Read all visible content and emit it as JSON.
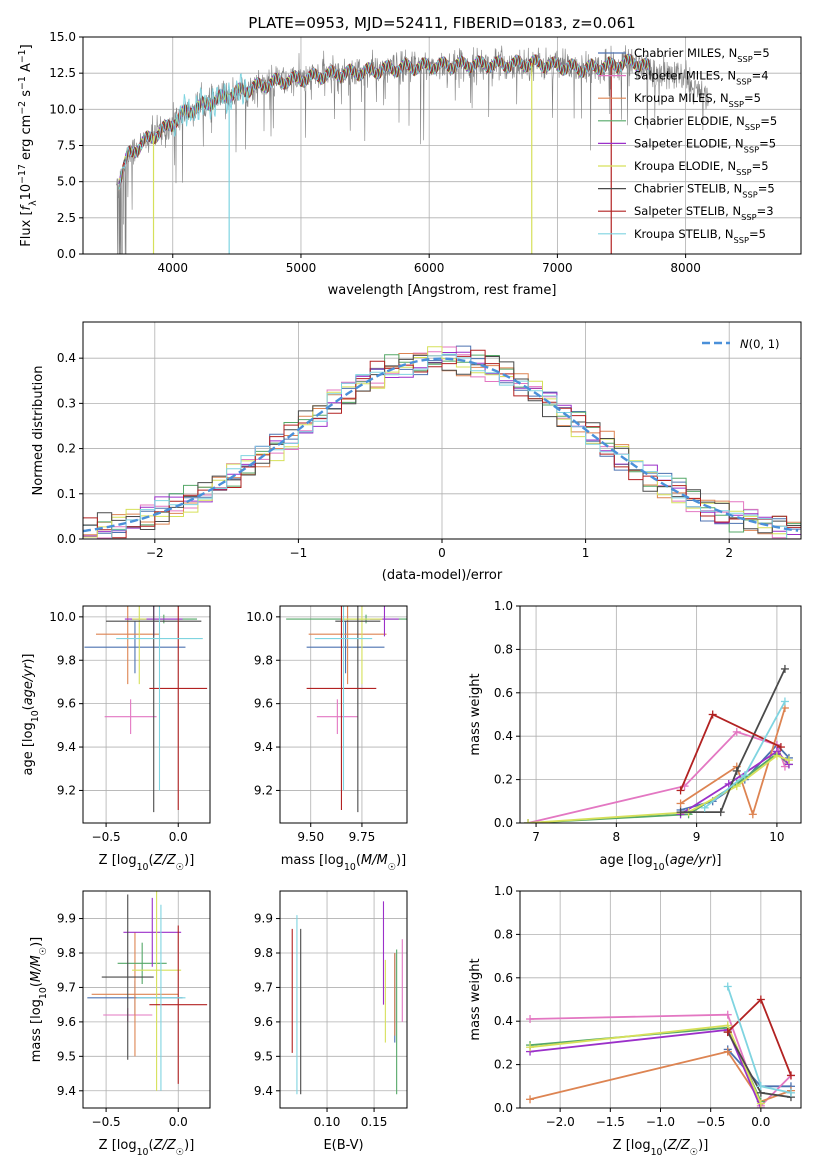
{
  "colors": {
    "Chabrier MILES": "#4c72b0",
    "Salpeter MILES": "#e377c2",
    "Kroupa MILES": "#dd8452",
    "Chabrier ELODIE": "#55a868",
    "Salpeter ELODIE": "#9b30c9",
    "Kroupa ELODIE": "#d6e05a",
    "Chabrier STELIB": "#4a4a4a",
    "Salpeter STELIB": "#b22222",
    "Kroupa STELIB": "#7fd4e0",
    "data": "#808080",
    "gauss": "#4a90d9",
    "grid": "#b0b0b0"
  },
  "chart_data": [
    {
      "id": "spectrum",
      "type": "line",
      "title": "PLATE=0953, MJD=52411, FIBERID=0183, z=0.061",
      "xlabel": "wavelength [Angstrom, rest frame]",
      "ylabel": "Flux [f_λ 10^-17 erg cm^-2 s^-1 A^-1]",
      "xlim": [
        3300,
        8900
      ],
      "ylim": [
        0,
        15
      ],
      "xticks": [
        4000,
        5000,
        6000,
        7000,
        8000
      ],
      "yticks": [
        0.0,
        2.5,
        5.0,
        7.5,
        10.0,
        12.5,
        15.0
      ],
      "legend": "right",
      "legend_entries": [
        {
          "model": "Chabrier MILES",
          "label": "Chabrier MILES, N",
          "sub": "SSP",
          "suffix": "=5"
        },
        {
          "model": "Salpeter MILES",
          "label": "Salpeter MILES, N",
          "sub": "SSP",
          "suffix": "=4"
        },
        {
          "model": "Kroupa MILES",
          "label": "Kroupa MILES, N",
          "sub": "SSP",
          "suffix": "=5"
        },
        {
          "model": "Chabrier ELODIE",
          "label": "Chabrier ELODIE, N",
          "sub": "SSP",
          "suffix": "=5"
        },
        {
          "model": "Salpeter ELODIE",
          "label": "Salpeter ELODIE, N",
          "sub": "SSP",
          "suffix": "=5"
        },
        {
          "model": "Kroupa ELODIE",
          "label": "Kroupa ELODIE, N",
          "sub": "SSP",
          "suffix": "=5"
        },
        {
          "model": "Chabrier STELIB",
          "label": "Chabrier STELIB, N",
          "sub": "SSP",
          "suffix": "=5"
        },
        {
          "model": "Salpeter STELIB",
          "label": "Salpeter STELIB, N",
          "sub": "SSP",
          "suffix": "=3"
        },
        {
          "model": "Kroupa STELIB",
          "label": "Kroupa STELIB, N",
          "sub": "SSP",
          "suffix": "=5"
        }
      ],
      "continuum": [
        [
          3580,
          5.0
        ],
        [
          3650,
          6.8
        ],
        [
          3800,
          7.9
        ],
        [
          3950,
          8.7
        ],
        [
          4100,
          9.8
        ],
        [
          4300,
          10.5
        ],
        [
          4500,
          11.2
        ],
        [
          4800,
          11.9
        ],
        [
          5000,
          12.1
        ],
        [
          5200,
          12.4
        ],
        [
          5500,
          12.6
        ],
        [
          5800,
          12.9
        ],
        [
          6000,
          13.0
        ],
        [
          6300,
          13.1
        ],
        [
          6600,
          13.1
        ],
        [
          6800,
          13.2
        ],
        [
          7000,
          13.0
        ],
        [
          7200,
          12.8
        ],
        [
          7400,
          13.0
        ],
        [
          7600,
          13.3
        ],
        [
          7700,
          12.9
        ],
        [
          7800,
          12.3
        ],
        [
          7900,
          12.4
        ],
        [
          8000,
          12.1
        ],
        [
          8100,
          11.2
        ],
        [
          8180,
          10.5
        ]
      ],
      "model_end": 7720
    },
    {
      "id": "residual-hist",
      "type": "bar",
      "xlabel": "(data-model)/error",
      "ylabel": "Normed distribution",
      "xlim": [
        -2.5,
        2.5
      ],
      "ylim": [
        0,
        0.48
      ],
      "xticks": [
        -2,
        -1,
        0,
        1,
        2
      ],
      "yticks": [
        0.0,
        0.1,
        0.2,
        0.3,
        0.4
      ],
      "bin_width": 0.1,
      "gaussian_label": "N(0, 1)",
      "legend": "top-right"
    },
    {
      "id": "age-vs-Z",
      "type": "scatter",
      "xlabel": "Z [log10(Z/Z☉)]",
      "ylabel": "age [log10(age/yr)]",
      "xlim": [
        -0.66,
        0.22
      ],
      "ylim": [
        9.05,
        10.05
      ],
      "xticks": [
        -0.5,
        0.0
      ],
      "yticks": [
        9.2,
        9.4,
        9.6,
        9.8,
        10.0
      ],
      "points": [
        {
          "model": "Chabrier MILES",
          "x": -0.3,
          "y": 9.86,
          "xerr": 0.35,
          "yerr": 0.12
        },
        {
          "model": "Salpeter MILES",
          "x": -0.33,
          "y": 9.54,
          "xerr": 0.18,
          "yerr": 0.08
        },
        {
          "model": "Kroupa MILES",
          "x": -0.35,
          "y": 9.92,
          "xerr": 0.22,
          "yerr": 0.23
        },
        {
          "model": "Chabrier ELODIE",
          "x": -0.1,
          "y": 9.99,
          "xerr": 0.23,
          "yerr": 0.02
        },
        {
          "model": "Salpeter ELODIE",
          "x": -0.17,
          "y": 9.99,
          "xerr": 0.2,
          "yerr": 0.08
        },
        {
          "model": "Kroupa ELODIE",
          "x": -0.27,
          "y": 9.99,
          "xerr": 0.05,
          "yerr": 0.3
        },
        {
          "model": "Chabrier STELIB",
          "x": -0.17,
          "y": 9.98,
          "xerr": 0.33,
          "yerr": 0.88
        },
        {
          "model": "Salpeter STELIB",
          "x": 0.0,
          "y": 9.67,
          "xerr": 0.2,
          "yerr": 0.56
        },
        {
          "model": "Kroupa STELIB",
          "x": -0.13,
          "y": 9.9,
          "xerr": 0.3,
          "yerr": 0.7
        }
      ]
    },
    {
      "id": "age-vs-mass",
      "type": "scatter",
      "xlabel": "mass [log10(M/M☉)]",
      "ylabel": "",
      "xlim": [
        9.35,
        9.97
      ],
      "ylim": [
        9.05,
        10.05
      ],
      "xticks": [
        9.5,
        9.75
      ],
      "yticks": [
        9.2,
        9.4,
        9.6,
        9.8,
        10.0
      ],
      "points": [
        {
          "model": "Chabrier MILES",
          "x": 9.67,
          "y": 9.86,
          "xerr": 0.19,
          "yerr": 0.12
        },
        {
          "model": "Salpeter MILES",
          "x": 9.63,
          "y": 9.54,
          "xerr": 0.1,
          "yerr": 0.08
        },
        {
          "model": "Kroupa MILES",
          "x": 9.68,
          "y": 9.92,
          "xerr": 0.19,
          "yerr": 0.23
        },
        {
          "model": "Chabrier ELODIE",
          "x": 9.77,
          "y": 9.99,
          "xerr": 0.39,
          "yerr": 0.02
        },
        {
          "model": "Salpeter ELODIE",
          "x": 9.86,
          "y": 9.99,
          "xerr": 0.07,
          "yerr": 0.08
        },
        {
          "model": "Kroupa ELODIE",
          "x": 9.75,
          "y": 9.99,
          "xerr": 0.1,
          "yerr": 0.3
        },
        {
          "model": "Chabrier STELIB",
          "x": 9.73,
          "y": 9.98,
          "xerr": 0.11,
          "yerr": 0.88
        },
        {
          "model": "Salpeter STELIB",
          "x": 9.65,
          "y": 9.67,
          "xerr": 0.17,
          "yerr": 0.56
        },
        {
          "model": "Kroupa STELIB",
          "x": 9.66,
          "y": 9.9,
          "xerr": 0.14,
          "yerr": 0.7
        }
      ]
    },
    {
      "id": "mass-weight-vs-age",
      "type": "line",
      "xlabel": "age [log10(age/yr)]",
      "ylabel": "mass weight",
      "xlim": [
        6.8,
        10.3
      ],
      "ylim": [
        0,
        1.0
      ],
      "xticks": [
        7,
        8,
        9,
        10
      ],
      "yticks": [
        0.0,
        0.2,
        0.4,
        0.6,
        0.8,
        1.0
      ],
      "series": [
        {
          "model": "Chabrier MILES",
          "x": [
            8.8,
            9.2,
            9.6,
            10.0,
            10.15
          ],
          "y": [
            0.06,
            0.1,
            0.2,
            0.36,
            0.3
          ]
        },
        {
          "model": "Salpeter MILES",
          "x": [
            6.9,
            8.85,
            9.5,
            10.0,
            10.1
          ],
          "y": [
            0.0,
            0.17,
            0.42,
            0.36,
            0.26
          ]
        },
        {
          "model": "Kroupa MILES",
          "x": [
            8.8,
            9.5,
            9.7,
            10.1
          ],
          "y": [
            0.09,
            0.26,
            0.04,
            0.53
          ]
        },
        {
          "model": "Chabrier ELODIE",
          "x": [
            6.9,
            8.9,
            9.5,
            10.0,
            10.15
          ],
          "y": [
            0.0,
            0.04,
            0.18,
            0.32,
            0.27
          ]
        },
        {
          "model": "Salpeter ELODIE",
          "x": [
            8.8,
            9.4,
            10.0,
            10.15
          ],
          "y": [
            0.04,
            0.18,
            0.33,
            0.27
          ]
        },
        {
          "model": "Kroupa ELODIE",
          "x": [
            6.9,
            8.9,
            9.5,
            10.0,
            10.15
          ],
          "y": [
            0.0,
            0.05,
            0.17,
            0.31,
            0.29
          ]
        },
        {
          "model": "Chabrier STELIB",
          "x": [
            8.8,
            9.3,
            9.5,
            10.1
          ],
          "y": [
            0.05,
            0.05,
            0.24,
            0.71
          ]
        },
        {
          "model": "Salpeter STELIB",
          "x": [
            8.8,
            9.2,
            10.05
          ],
          "y": [
            0.15,
            0.5,
            0.35
          ]
        },
        {
          "model": "Kroupa STELIB",
          "x": [
            9.1,
            9.6,
            10.1
          ],
          "y": [
            0.07,
            0.22,
            0.56
          ]
        }
      ]
    },
    {
      "id": "mass-vs-Z",
      "type": "scatter",
      "xlabel": "Z [log10(Z/Z☉)]",
      "ylabel": "mass [log10(M/M☉)]",
      "xlim": [
        -0.66,
        0.22
      ],
      "ylim": [
        9.35,
        9.98
      ],
      "xticks": [
        -0.5,
        0.0
      ],
      "yticks": [
        9.4,
        9.5,
        9.6,
        9.7,
        9.8,
        9.9
      ],
      "points": [
        {
          "model": "Chabrier MILES",
          "x": -0.3,
          "y": 9.67,
          "xerr": 0.33,
          "yerr": 0.05
        },
        {
          "model": "Salpeter MILES",
          "x": -0.35,
          "y": 9.62,
          "xerr": 0.17,
          "yerr": 0.02
        },
        {
          "model": "Kroupa MILES",
          "x": -0.3,
          "y": 9.68,
          "xerr": 0.3,
          "yerr": 0.18
        },
        {
          "model": "Chabrier ELODIE",
          "x": -0.25,
          "y": 9.77,
          "xerr": 0.17,
          "yerr": 0.06
        },
        {
          "model": "Salpeter ELODIE",
          "x": -0.18,
          "y": 9.86,
          "xerr": 0.2,
          "yerr": 0.1
        },
        {
          "model": "Kroupa ELODIE",
          "x": -0.15,
          "y": 9.75,
          "xerr": 0.17,
          "yerr": 0.35
        },
        {
          "model": "Chabrier STELIB",
          "x": -0.35,
          "y": 9.73,
          "xerr": 0.18,
          "yerr": 0.24
        },
        {
          "model": "Salpeter STELIB",
          "x": 0.0,
          "y": 9.65,
          "xerr": 0.2,
          "yerr": 0.23
        },
        {
          "model": "Kroupa STELIB",
          "x": -0.12,
          "y": 9.67,
          "xerr": 0.17,
          "yerr": 0.27
        }
      ]
    },
    {
      "id": "mass-vs-ebv",
      "type": "scatter",
      "xlabel": "E(B-V)",
      "ylabel": "",
      "xlim": [
        0.05,
        0.185
      ],
      "ylim": [
        9.35,
        9.98
      ],
      "xticks": [
        0.1,
        0.15
      ],
      "yticks": [
        9.4,
        9.5,
        9.6,
        9.7,
        9.8,
        9.9
      ],
      "points": [
        {
          "model": "Chabrier MILES",
          "x": 0.172,
          "y": 9.67,
          "xerr": 0,
          "yerr": 0.13
        },
        {
          "model": "Salpeter MILES",
          "x": 0.18,
          "y": 9.72,
          "xerr": 0,
          "yerr": 0.12
        },
        {
          "model": "Kroupa MILES",
          "x": 0.172,
          "y": 9.68,
          "xerr": 0,
          "yerr": 0.12
        },
        {
          "model": "Chabrier ELODIE",
          "x": 0.174,
          "y": 9.6,
          "xerr": 0,
          "yerr": 0.21
        },
        {
          "model": "Salpeter ELODIE",
          "x": 0.16,
          "y": 9.8,
          "xerr": 0,
          "yerr": 0.15
        },
        {
          "model": "Kroupa ELODIE",
          "x": 0.162,
          "y": 9.66,
          "xerr": 0,
          "yerr": 0.12
        },
        {
          "model": "Chabrier STELIB",
          "x": 0.072,
          "y": 9.63,
          "xerr": 0,
          "yerr": 0.24
        },
        {
          "model": "Salpeter STELIB",
          "x": 0.063,
          "y": 9.69,
          "xerr": 0,
          "yerr": 0.18
        },
        {
          "model": "Kroupa STELIB",
          "x": 0.068,
          "y": 9.65,
          "xerr": 0,
          "yerr": 0.26
        }
      ]
    },
    {
      "id": "mass-weight-vs-Z",
      "type": "line",
      "xlabel": "Z [log10(Z/Z☉)]",
      "ylabel": "mass weight",
      "xlim": [
        -2.4,
        0.4
      ],
      "ylim": [
        0,
        1.0
      ],
      "xticks": [
        -2.0,
        -1.5,
        -1.0,
        -0.5,
        0.0
      ],
      "yticks": [
        0.0,
        0.2,
        0.4,
        0.6,
        0.8,
        1.0
      ],
      "series": [
        {
          "model": "Chabrier MILES",
          "x": [
            -0.33,
            0.0,
            0.3
          ],
          "y": [
            0.27,
            0.1,
            0.1
          ]
        },
        {
          "model": "Salpeter MILES",
          "x": [
            -2.3,
            -0.33,
            0.0,
            0.3
          ],
          "y": [
            0.41,
            0.43,
            0.01,
            0.15
          ]
        },
        {
          "model": "Kroupa MILES",
          "x": [
            -2.3,
            -0.33,
            0.0,
            0.3
          ],
          "y": [
            0.04,
            0.26,
            0.03,
            0.08
          ]
        },
        {
          "model": "Chabrier ELODIE",
          "x": [
            -2.3,
            -0.33,
            0.0
          ],
          "y": [
            0.29,
            0.37,
            0.03
          ]
        },
        {
          "model": "Salpeter ELODIE",
          "x": [
            -2.3,
            -0.33,
            0.0
          ],
          "y": [
            0.26,
            0.36,
            0.0
          ]
        },
        {
          "model": "Kroupa ELODIE",
          "x": [
            -2.3,
            -0.33,
            0.0
          ],
          "y": [
            0.28,
            0.38,
            0.02
          ]
        },
        {
          "model": "Chabrier STELIB",
          "x": [
            -0.33,
            0.0,
            0.3
          ],
          "y": [
            0.35,
            0.07,
            0.05
          ]
        },
        {
          "model": "Salpeter STELIB",
          "x": [
            -0.33,
            0.0,
            0.3
          ],
          "y": [
            0.35,
            0.5,
            0.15
          ]
        },
        {
          "model": "Kroupa STELIB",
          "x": [
            -0.33,
            0.0,
            0.3
          ],
          "y": [
            0.56,
            0.1,
            0.07
          ]
        }
      ]
    }
  ]
}
